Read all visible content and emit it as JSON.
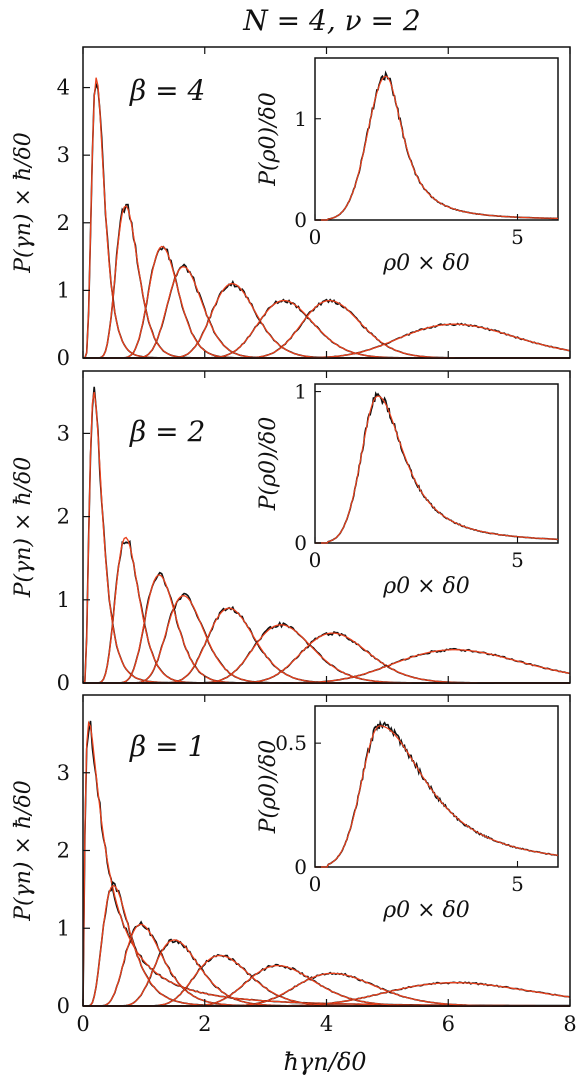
{
  "figure": {
    "title": "N = 4,  ν = 2",
    "xlabel": "ħγn/δ0"
  },
  "chart_data": [
    {
      "type": "line",
      "panel": "top",
      "annotation": "β = 4",
      "ylabel": "P(γn) × ħ/δ0",
      "xlabel": "ħγn/δ0",
      "xlim": [
        0,
        8
      ],
      "ylim": [
        0,
        4.6
      ],
      "xticks": [
        "0",
        "2",
        "4",
        "6",
        "8"
      ],
      "yticks": [
        "0",
        "1",
        "2",
        "3",
        "4"
      ],
      "ytick_values": [
        0,
        1,
        2,
        3,
        4
      ],
      "series": [
        {
          "peak_x": 0.22,
          "peak_y": 4.15,
          "width": 0.1
        },
        {
          "peak_x": 0.7,
          "peak_y": 2.25,
          "width": 0.18
        },
        {
          "peak_x": 1.3,
          "peak_y": 1.65,
          "width": 0.24
        },
        {
          "peak_x": 1.65,
          "peak_y": 1.35,
          "width": 0.28
        },
        {
          "peak_x": 2.45,
          "peak_y": 1.1,
          "width": 0.36
        },
        {
          "peak_x": 3.3,
          "peak_y": 0.85,
          "width": 0.45
        },
        {
          "peak_x": 4.05,
          "peak_y": 0.85,
          "width": 0.48
        },
        {
          "peak_x": 6.1,
          "peak_y": 0.5,
          "width": 0.95
        }
      ],
      "inset": {
        "ylabel": "P(ρ0)/δ0",
        "xlabel": "ρ0 × δ0",
        "xlim": [
          0,
          6
        ],
        "ylim": [
          0,
          1.6
        ],
        "xticks": [
          "0",
          "5"
        ],
        "xtick_values": [
          0,
          5
        ],
        "yticks": [
          "0",
          "1"
        ],
        "ytick_values": [
          0,
          1
        ],
        "peak_x": 1.75,
        "peak_y": 1.42,
        "rise": 0.45,
        "decay": 0.55
      }
    },
    {
      "type": "line",
      "panel": "middle",
      "annotation": "β = 2",
      "ylabel": "P(γn) × ħ/δ0",
      "xlabel": "ħγn/δ0",
      "xlim": [
        0,
        8
      ],
      "ylim": [
        0,
        3.75
      ],
      "xticks": [
        "0",
        "2",
        "4",
        "6",
        "8"
      ],
      "yticks": [
        "0",
        "1",
        "2",
        "3"
      ],
      "ytick_values": [
        0,
        1,
        2,
        3
      ],
      "series": [
        {
          "peak_x": 0.18,
          "peak_y": 3.5,
          "width": 0.1
        },
        {
          "peak_x": 0.7,
          "peak_y": 1.75,
          "width": 0.19
        },
        {
          "peak_x": 1.25,
          "peak_y": 1.3,
          "width": 0.25
        },
        {
          "peak_x": 1.65,
          "peak_y": 1.05,
          "width": 0.3
        },
        {
          "peak_x": 2.4,
          "peak_y": 0.9,
          "width": 0.38
        },
        {
          "peak_x": 3.25,
          "peak_y": 0.7,
          "width": 0.48
        },
        {
          "peak_x": 4.1,
          "peak_y": 0.6,
          "width": 0.55
        },
        {
          "peak_x": 6.1,
          "peak_y": 0.4,
          "width": 1.05
        }
      ],
      "inset": {
        "ylabel": "P(ρ0)/δ0",
        "xlabel": "ρ0 × δ0",
        "xlim": [
          0,
          6
        ],
        "ylim": [
          0,
          1.05
        ],
        "xticks": [
          "0",
          "5"
        ],
        "xtick_values": [
          0,
          5
        ],
        "yticks": [
          "0",
          "1"
        ],
        "ytick_values": [
          0,
          1
        ],
        "peak_x": 1.55,
        "peak_y": 0.97,
        "rise": 0.4,
        "decay": 0.85
      }
    },
    {
      "type": "line",
      "panel": "bottom",
      "annotation": "β = 1",
      "ylabel": "P(γn) × ħ/δ0",
      "xlabel": "ħγn/δ0",
      "xlim": [
        0,
        8
      ],
      "ylim": [
        0,
        4.0
      ],
      "xticks": [
        "0",
        "2",
        "4",
        "6",
        "8"
      ],
      "yticks": [
        "0",
        "1",
        "2",
        "3"
      ],
      "ytick_values": [
        0,
        1,
        2,
        3
      ],
      "series": [
        {
          "peak_x": 0.1,
          "peak_y": 3.65,
          "width": 0.12
        },
        {
          "peak_x": 0.5,
          "peak_y": 1.55,
          "width": 0.22
        },
        {
          "peak_x": 0.95,
          "peak_y": 1.05,
          "width": 0.3
        },
        {
          "peak_x": 1.5,
          "peak_y": 0.85,
          "width": 0.36
        },
        {
          "peak_x": 2.25,
          "peak_y": 0.65,
          "width": 0.45
        },
        {
          "peak_x": 3.2,
          "peak_y": 0.52,
          "width": 0.55
        },
        {
          "peak_x": 4.1,
          "peak_y": 0.42,
          "width": 0.65
        },
        {
          "peak_x": 6.1,
          "peak_y": 0.3,
          "width": 1.2
        }
      ],
      "inset": {
        "ylabel": "P(ρ0)/δ0",
        "xlabel": "ρ0 × δ0",
        "xlim": [
          0,
          6
        ],
        "ylim": [
          0,
          0.65
        ],
        "xticks": [
          "0",
          "5"
        ],
        "xtick_values": [
          0,
          5
        ],
        "yticks": [
          "0",
          "0.5"
        ],
        "ytick_values": [
          0,
          0.5
        ],
        "peak_x": 1.6,
        "peak_y": 0.57,
        "rise": 0.45,
        "decay": 1.5
      }
    }
  ],
  "colors": {
    "data": "#111111",
    "fit": "#e8401c",
    "frame": "#111111"
  }
}
